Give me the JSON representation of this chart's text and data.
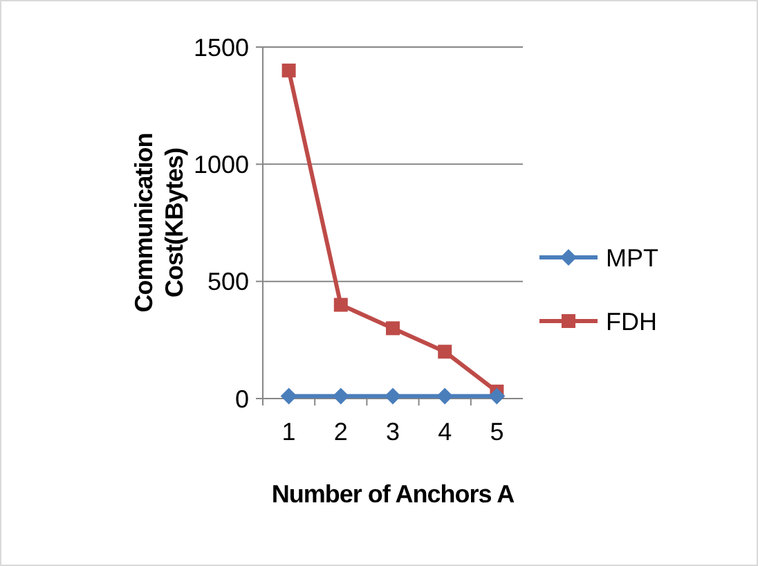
{
  "chart_data": {
    "type": "line",
    "xlabel": "Number of Anchors A",
    "ylabel": "Communication Cost(KBytes)",
    "categories": [
      "1",
      "2",
      "3",
      "4",
      "5"
    ],
    "series": [
      {
        "name": "MPT",
        "color": "#4a7ebb",
        "marker": "diamond",
        "values": [
          10,
          10,
          10,
          10,
          10
        ]
      },
      {
        "name": "FDH",
        "color": "#be4b48",
        "marker": "square",
        "values": [
          1400,
          400,
          300,
          200,
          30
        ]
      }
    ],
    "ylim": [
      0,
      1500
    ],
    "yticks": [
      0,
      500,
      1000,
      1500
    ],
    "grid": "y",
    "legend": "right",
    "line_style": "solid"
  }
}
